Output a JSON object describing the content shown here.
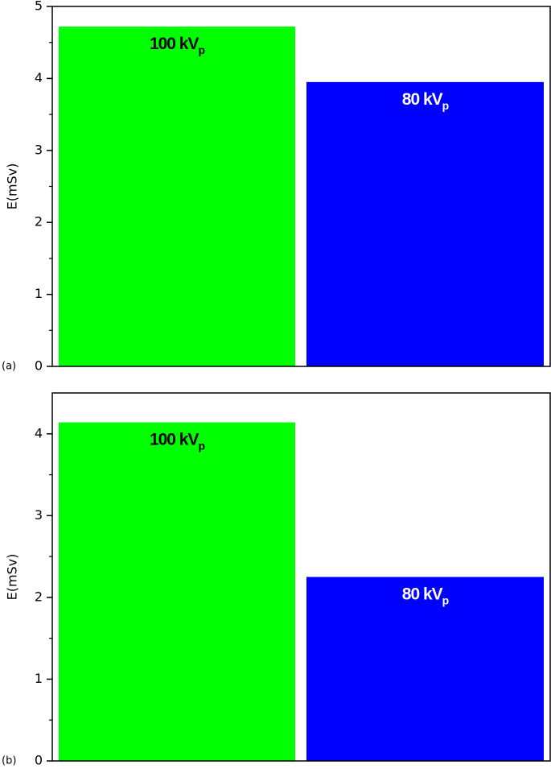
{
  "chart_data": [
    {
      "type": "bar",
      "panel_label": "(a)",
      "ylabel": "E(mSv)",
      "categories": [
        "100 kV",
        "80 kV"
      ],
      "category_subscripts": [
        "p",
        "p"
      ],
      "values": [
        4.72,
        3.95
      ],
      "colors": [
        "#00ff00",
        "#0000ff"
      ],
      "label_colors": [
        "#000000",
        "#ffffff"
      ],
      "ylim": [
        0,
        5
      ],
      "yticks": [
        0,
        1,
        2,
        3,
        4,
        5
      ],
      "minor_yticks": [
        0.5,
        1.5,
        2.5,
        3.5,
        4.5
      ]
    },
    {
      "type": "bar",
      "panel_label": "(b)",
      "ylabel": "E(mSv)",
      "categories": [
        "100 kV",
        "80 kV"
      ],
      "category_subscripts": [
        "p",
        "p"
      ],
      "values": [
        4.14,
        2.25
      ],
      "colors": [
        "#00ff00",
        "#0000ff"
      ],
      "label_colors": [
        "#000000",
        "#ffffff"
      ],
      "ylim": [
        0,
        4.5
      ],
      "yticks": [
        0,
        1,
        2,
        3,
        4
      ],
      "minor_yticks": [
        0.5,
        1.5,
        2.5,
        3.5
      ]
    }
  ]
}
